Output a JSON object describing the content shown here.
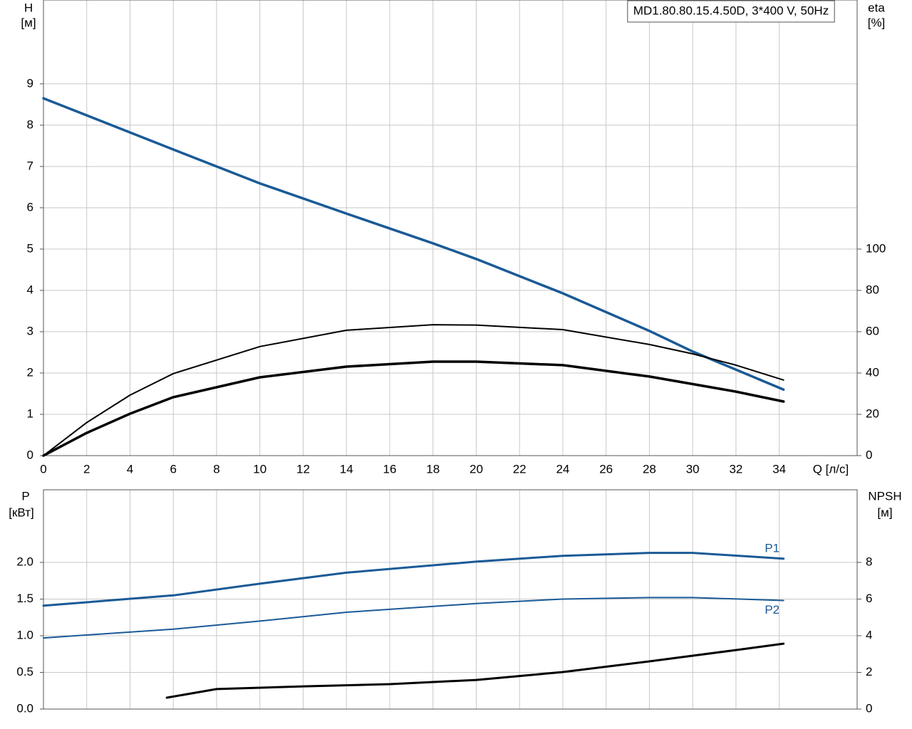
{
  "chart_data": [
    {
      "type": "line",
      "title": "MD1.80.80.15.4.50D, 3*400 V, 50Hz",
      "ylabel": [
        "H",
        "[м]"
      ],
      "y2label": [
        "eta",
        "[%]"
      ],
      "xlabel": "Q [л/с]",
      "xlim": [
        0,
        37.6
      ],
      "xticks": [
        0,
        2,
        4,
        6,
        8,
        10,
        12,
        14,
        16,
        18,
        20,
        22,
        24,
        26,
        28,
        30,
        32,
        34
      ],
      "ylim": [
        0,
        11.03
      ],
      "yticks": [
        0,
        1,
        2,
        3,
        4,
        5,
        6,
        7,
        8,
        9
      ],
      "y2lim": [
        0,
        220.6
      ],
      "y2ticks": [
        0,
        20,
        40,
        60,
        80,
        100
      ],
      "grid": true,
      "series": [
        {
          "color": "#1a5a96",
          "line_width": 3.5,
          "x": [
            0,
            6,
            10,
            14,
            18,
            20,
            24,
            28,
            30,
            34.2
          ],
          "values": [
            8.65,
            7.41,
            6.59,
            5.86,
            5.14,
            4.76,
            3.93,
            3.02,
            2.52,
            1.6
          ]
        },
        {
          "color": "#000000",
          "line_width": 2,
          "axis": "y2",
          "x": [
            0,
            2,
            4,
            6,
            10,
            14,
            18,
            20,
            24,
            28,
            30,
            32,
            34.2
          ],
          "values": [
            0,
            16,
            29.3,
            39.7,
            52.8,
            60.7,
            63.4,
            63.2,
            61,
            53.8,
            49.3,
            43.8,
            36.6
          ]
        },
        {
          "color": "#000000",
          "line_width": 3.5,
          "axis": "y2",
          "x": [
            0,
            2,
            4,
            6,
            10,
            14,
            18,
            20,
            24,
            28,
            32,
            34.2
          ],
          "values": [
            0,
            11,
            20.3,
            28.3,
            37.9,
            43.1,
            45.5,
            45.5,
            43.8,
            38.3,
            31,
            26.2
          ]
        }
      ]
    },
    {
      "type": "line",
      "ylabel": [
        "P",
        "[кВт]"
      ],
      "y2label": [
        "NPSH",
        "[м]"
      ],
      "xlim": [
        0,
        37.6
      ],
      "ylim": [
        0,
        2.99
      ],
      "yticks": [
        {
          "value": 0,
          "label": "0.0"
        },
        {
          "value": 0.5,
          "label": "0.5"
        },
        {
          "value": 1,
          "label": "1.0"
        },
        {
          "value": 1.5,
          "label": "1.5"
        },
        {
          "value": 2,
          "label": "2.0"
        }
      ],
      "y2lim": [
        0,
        11.96
      ],
      "y2ticks": [
        0,
        2,
        4,
        6,
        8
      ],
      "grid": true,
      "series": [
        {
          "name": "P1",
          "color": "#1a5a96",
          "line_width": 3,
          "x": [
            0,
            6,
            10,
            14,
            20,
            24,
            28,
            30,
            34.2
          ],
          "values": [
            1.41,
            1.55,
            1.71,
            1.86,
            2.01,
            2.09,
            2.13,
            2.13,
            2.05
          ]
        },
        {
          "name": "P2",
          "color": "#1a5a96",
          "line_width": 2,
          "x": [
            0,
            6,
            10,
            14,
            20,
            24,
            28,
            30,
            34.2
          ],
          "values": [
            0.97,
            1.09,
            1.2,
            1.32,
            1.44,
            1.5,
            1.52,
            1.52,
            1.48
          ]
        },
        {
          "color": "#000000",
          "line_width": 3,
          "axis": "y2",
          "x": [
            5.7,
            8,
            12,
            16,
            20,
            24,
            28,
            32,
            34.2
          ],
          "values": [
            0.62,
            1.09,
            1.24,
            1.36,
            1.59,
            2.02,
            2.6,
            3.22,
            3.57
          ]
        }
      ]
    }
  ]
}
